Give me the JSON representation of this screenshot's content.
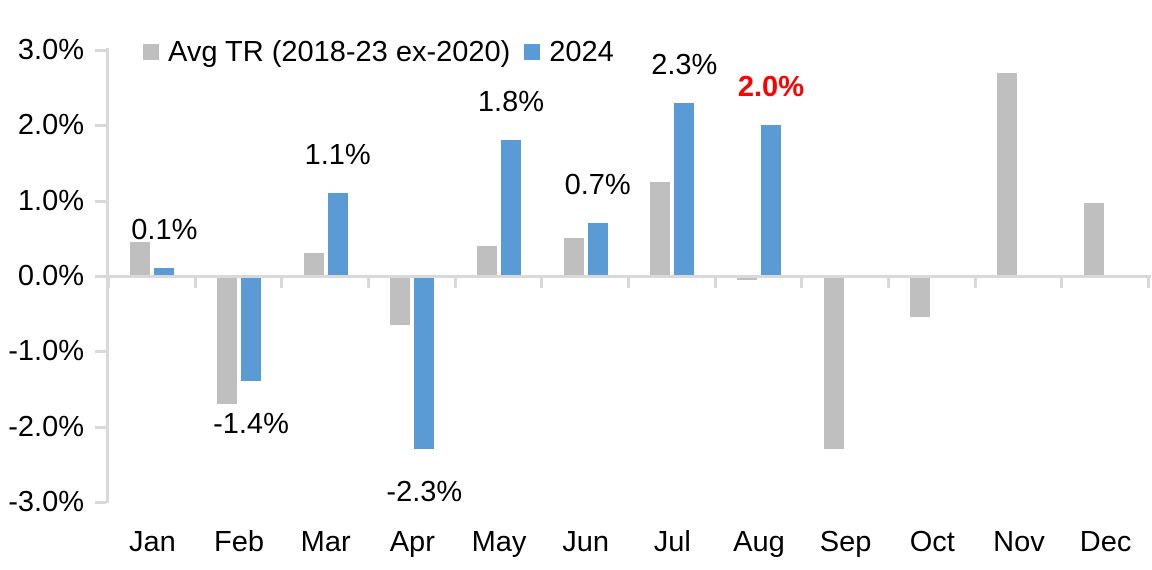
{
  "chart_data": {
    "type": "bar",
    "title": "",
    "xlabel": "",
    "ylabel": "",
    "categories": [
      "Jan",
      "Feb",
      "Mar",
      "Apr",
      "May",
      "Jun",
      "Jul",
      "Aug",
      "Sep",
      "Oct",
      "Nov",
      "Dec"
    ],
    "series": [
      {
        "name": "Avg TR (2018-23 ex-2020)",
        "color": "#BFBFBF",
        "values": [
          0.45,
          -1.7,
          0.3,
          -0.65,
          0.4,
          0.5,
          1.25,
          -0.05,
          -2.3,
          -0.55,
          2.7,
          0.97
        ]
      },
      {
        "name": "2024",
        "color": "#5B9BD5",
        "values": [
          0.1,
          -1.4,
          1.1,
          -2.3,
          1.8,
          0.7,
          2.3,
          2.0,
          null,
          null,
          null,
          null
        ],
        "labels": [
          "0.1%",
          "-1.4%",
          "1.1%",
          "-2.3%",
          "1.8%",
          "0.7%",
          "2.3%",
          "2.0%",
          null,
          null,
          null,
          null
        ],
        "label_colors": [
          "#000000",
          "#000000",
          "#000000",
          "#000000",
          "#000000",
          "#000000",
          "#000000",
          "#FF0000",
          null,
          null,
          null,
          null
        ],
        "label_bold": [
          false,
          false,
          false,
          false,
          false,
          false,
          false,
          true,
          null,
          null,
          null,
          null
        ]
      }
    ],
    "ylim": [
      -3,
      3
    ],
    "ytick_step": 1.0,
    "yticks": [
      "3.0%",
      "2.0%",
      "1.0%",
      "0.0%",
      "-1.0%",
      "-2.0%",
      "-3.0%"
    ],
    "legend_position": "top",
    "grid": false,
    "axis_color": "#D9D9D9",
    "text_color": "#000000",
    "background_color": "#FFFFFF"
  }
}
